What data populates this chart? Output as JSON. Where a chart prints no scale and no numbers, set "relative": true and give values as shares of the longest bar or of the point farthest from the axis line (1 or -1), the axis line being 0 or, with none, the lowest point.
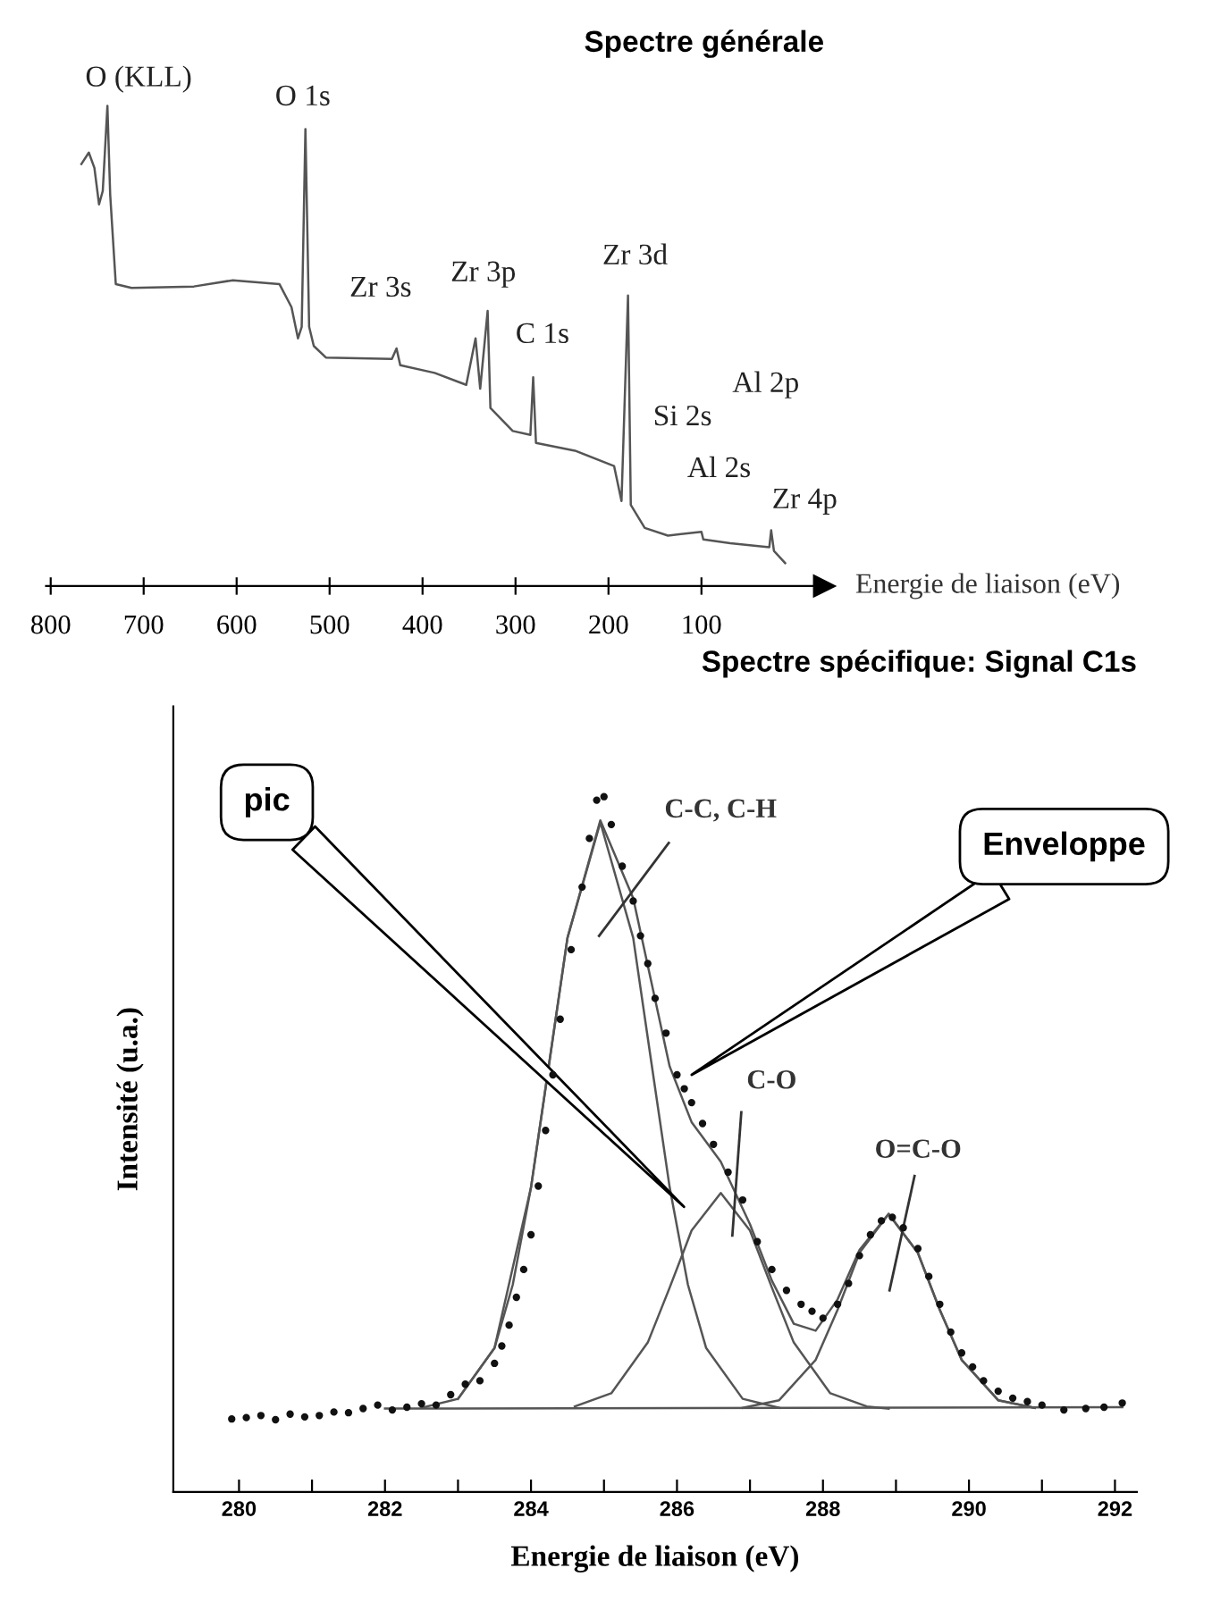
{
  "chart_data": [
    {
      "type": "line",
      "title": "Spectre générale",
      "xlabel": "Energie de liaison (eV)",
      "relative": true,
      "color": "#555555",
      "tick_labels": "x",
      "x": [
        767,
        759,
        753,
        748,
        744,
        739,
        736,
        730,
        713,
        646,
        604,
        554,
        541,
        534,
        530,
        526,
        522,
        517,
        504,
        433,
        428,
        424,
        387,
        353,
        343,
        338,
        330,
        327,
        303,
        284,
        281,
        278,
        236,
        194,
        186,
        179,
        176,
        161,
        136,
        100,
        98,
        69,
        27,
        25,
        22,
        10
      ],
      "values": [
        0.879,
        0.903,
        0.871,
        0.795,
        0.823,
        1.0,
        0.815,
        0.629,
        0.621,
        0.624,
        0.637,
        0.629,
        0.581,
        0.516,
        0.54,
        0.952,
        0.54,
        0.5,
        0.476,
        0.473,
        0.495,
        0.46,
        0.444,
        0.419,
        0.516,
        0.411,
        0.573,
        0.371,
        0.323,
        0.315,
        0.435,
        0.298,
        0.282,
        0.25,
        0.177,
        0.605,
        0.169,
        0.121,
        0.105,
        0.113,
        0.097,
        0.089,
        0.081,
        0.116,
        0.073,
        0.048
      ],
      "xlim": [
        805,
        -32
      ],
      "xticks": [
        800,
        700,
        600,
        500,
        400,
        300,
        200,
        100
      ],
      "annotations": [
        "O (KLL)",
        "O 1s",
        "Zr 3s",
        "Zr 3p",
        "C 1s",
        "Zr 3d",
        "Si 2s",
        "Al 2p",
        "Al 2s",
        "Zr 4p"
      ]
    },
    {
      "type": "line",
      "title": "Spectre spécifique: Signal C1s",
      "xlabel": "Energie de liaison (eV)",
      "ylabel": "Intensité (u.a.)",
      "relative": true,
      "tick_labels": "x",
      "xlim": [
        279.1,
        292.3
      ],
      "xticks": [
        280,
        {
          "value": 281,
          "label": null
        },
        282,
        {
          "value": 283,
          "label": null
        },
        284,
        {
          "value": 285,
          "label": null
        },
        286,
        {
          "value": 287,
          "label": null
        },
        288,
        {
          "value": 289,
          "label": null
        },
        290,
        {
          "value": 291,
          "label": null
        },
        292
      ],
      "series": [
        {
          "type": "scatter",
          "marker": "circle",
          "color": "#111111",
          "x": [
            279.9,
            280.1,
            280.3,
            280.5,
            280.7,
            280.9,
            281.1,
            281.3,
            281.5,
            281.7,
            281.9,
            282.1,
            282.3,
            282.5,
            282.7,
            282.9,
            283.1,
            283.3,
            283.5,
            283.6,
            283.7,
            283.8,
            283.9,
            284.0,
            284.1,
            284.2,
            284.3,
            284.4,
            284.55,
            284.7,
            284.8,
            284.9,
            285.0,
            285.1,
            285.25,
            285.4,
            285.5,
            285.6,
            285.7,
            285.85,
            286.0,
            286.1,
            286.2,
            286.35,
            286.5,
            286.7,
            286.9,
            287.1,
            287.3,
            287.5,
            287.7,
            287.85,
            288.0,
            288.2,
            288.35,
            288.5,
            288.65,
            288.8,
            288.95,
            289.1,
            289.3,
            289.45,
            289.6,
            289.75,
            289.9,
            290.05,
            290.2,
            290.4,
            290.6,
            290.8,
            291.0,
            291.3,
            291.6,
            291.85,
            292.1
          ],
          "values": [
            0.105,
            0.107,
            0.11,
            0.104,
            0.112,
            0.108,
            0.11,
            0.115,
            0.114,
            0.12,
            0.125,
            0.118,
            0.122,
            0.127,
            0.125,
            0.14,
            0.155,
            0.16,
            0.185,
            0.21,
            0.24,
            0.28,
            0.32,
            0.37,
            0.44,
            0.52,
            0.6,
            0.68,
            0.78,
            0.87,
            0.94,
            0.995,
            1.0,
            0.96,
            0.9,
            0.85,
            0.8,
            0.76,
            0.71,
            0.66,
            0.6,
            0.58,
            0.56,
            0.53,
            0.5,
            0.46,
            0.42,
            0.36,
            0.32,
            0.29,
            0.27,
            0.26,
            0.25,
            0.27,
            0.3,
            0.34,
            0.37,
            0.39,
            0.395,
            0.38,
            0.35,
            0.31,
            0.27,
            0.23,
            0.2,
            0.18,
            0.16,
            0.145,
            0.135,
            0.13,
            0.125,
            0.118,
            0.12,
            0.122,
            0.128
          ]
        },
        {
          "type": "line",
          "color": "#555555",
          "x": [
            282.5,
            283.0,
            283.5,
            283.75,
            284.0,
            284.25,
            284.5,
            284.95,
            285.4,
            285.65,
            285.9,
            286.15,
            286.4,
            286.9,
            287.4
          ],
          "values": [
            0.121,
            0.134,
            0.207,
            0.298,
            0.438,
            0.617,
            0.797,
            0.963,
            0.797,
            0.617,
            0.438,
            0.298,
            0.207,
            0.134,
            0.121
          ]
        },
        {
          "type": "line",
          "color": "#555555",
          "x": [
            284.6,
            285.1,
            285.6,
            285.9,
            286.2,
            286.6,
            287.0,
            287.3,
            287.6,
            288.1,
            288.6,
            288.9
          ],
          "values": [
            0.123,
            0.142,
            0.215,
            0.294,
            0.376,
            0.43,
            0.376,
            0.294,
            0.215,
            0.142,
            0.123,
            0.12
          ]
        },
        {
          "type": "line",
          "color": "#555555",
          "x": [
            286.9,
            287.4,
            287.9,
            288.2,
            288.5,
            288.9,
            289.3,
            289.6,
            289.9,
            290.4,
            290.9
          ],
          "values": [
            0.121,
            0.132,
            0.19,
            0.262,
            0.344,
            0.4,
            0.344,
            0.262,
            0.19,
            0.132,
            0.121
          ]
        },
        {
          "type": "line",
          "color": "#555555",
          "x": [
            283.0,
            283.5,
            284.0,
            284.5,
            284.95,
            285.4,
            285.9,
            286.2,
            286.6,
            287.0,
            287.3,
            287.6,
            287.9,
            288.2,
            288.5,
            288.9,
            289.3,
            289.6,
            289.9,
            290.4,
            290.9
          ],
          "values": [
            0.134,
            0.207,
            0.438,
            0.797,
            0.966,
            0.854,
            0.612,
            0.532,
            0.475,
            0.385,
            0.304,
            0.242,
            0.232,
            0.277,
            0.348,
            0.4,
            0.344,
            0.262,
            0.19,
            0.132,
            0.121
          ]
        },
        {
          "type": "line",
          "color": "#555555",
          "x": [
            282.0,
            292.1
          ],
          "values": [
            0.12,
            0.122
          ]
        }
      ],
      "annotations": [
        "pic",
        "Enveloppe",
        "C-C, C-H",
        "C-O",
        "O=C-O"
      ]
    }
  ]
}
